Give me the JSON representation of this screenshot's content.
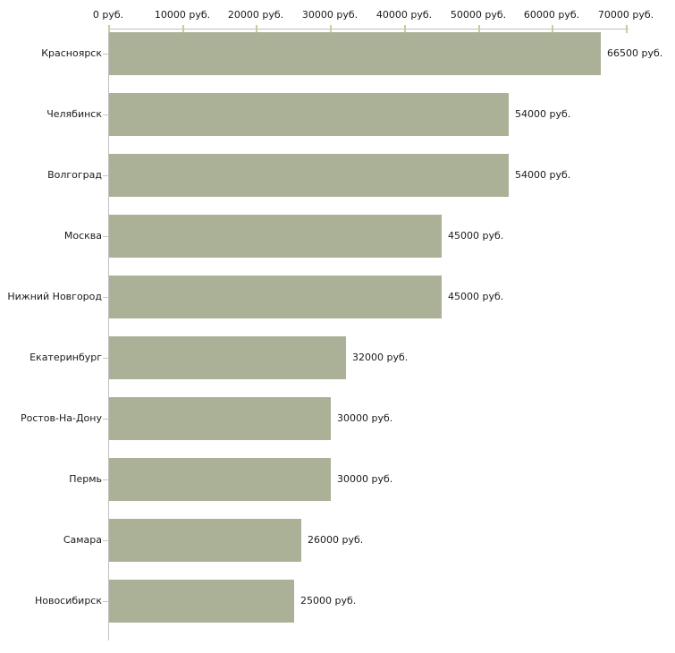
{
  "chart_data": {
    "type": "bar",
    "orientation": "horizontal",
    "title": "",
    "xlabel": "",
    "ylabel": "",
    "unit": "руб.",
    "grid": "off",
    "legend": "none",
    "xlim": [
      0,
      70000
    ],
    "x_tick_values": [
      0,
      10000,
      20000,
      30000,
      40000,
      50000,
      60000,
      70000
    ],
    "x_tick_labels": [
      "0 руб.",
      "10000 руб.",
      "20000 руб.",
      "30000 руб.",
      "40000 руб.",
      "50000 руб.",
      "60000 руб.",
      "70000 руб."
    ],
    "categories": [
      "Красноярск",
      "Челябинск",
      "Волгоград",
      "Москва",
      "Нижний Новгород",
      "Екатеринбург",
      "Ростов-На-Дону",
      "Пермь",
      "Самара",
      "Новосибирск"
    ],
    "values": [
      66500,
      54000,
      54000,
      45000,
      45000,
      32000,
      30000,
      30000,
      26000,
      25000
    ],
    "value_labels": [
      "66500 руб.",
      "54000 руб.",
      "54000 руб.",
      "45000 руб.",
      "45000 руб.",
      "32000 руб.",
      "30000 руб.",
      "30000 руб.",
      "26000 руб.",
      "25000 руб."
    ],
    "colors": {
      "bar": "#abb196",
      "axis_line": "#c0c0c0",
      "x_tick": "#cccc99",
      "category_tick": "#c9c9ae",
      "text": "#1a1a1a",
      "background": "#ffffff"
    }
  }
}
